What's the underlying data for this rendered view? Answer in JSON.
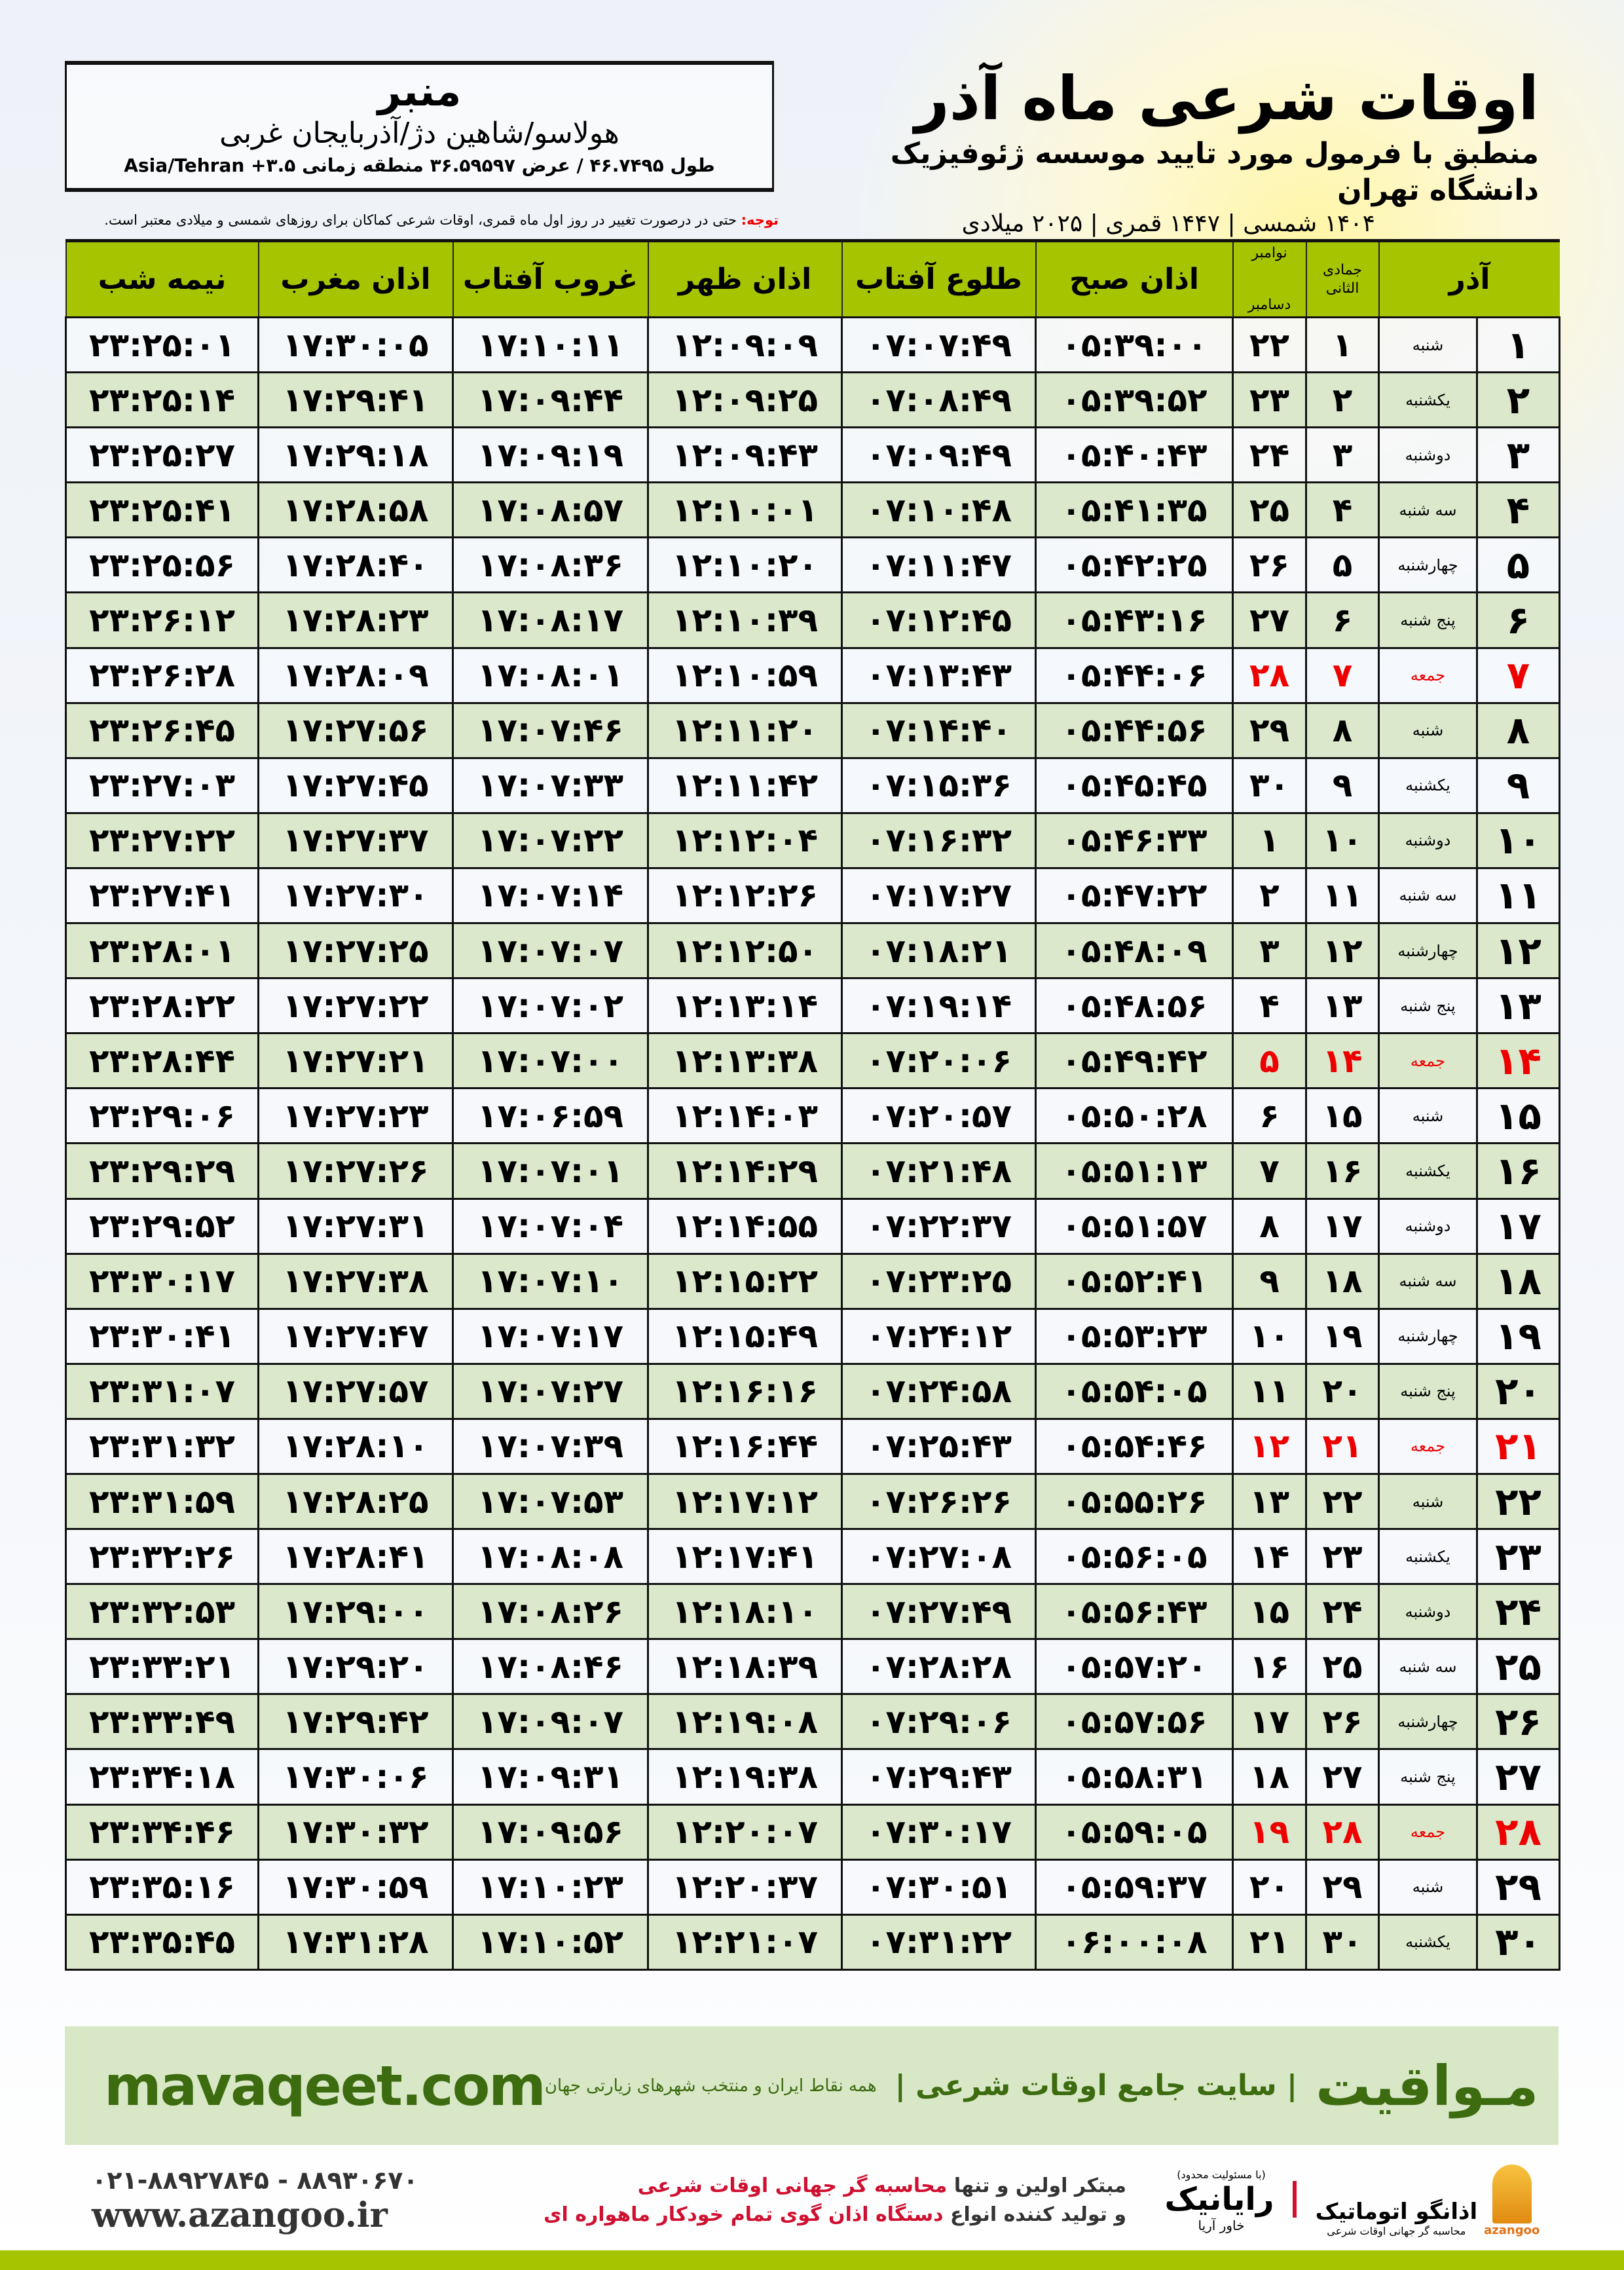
{
  "header": {
    "title": "اوقات شرعی ماه آذر",
    "subtitle": "منطبق با فرمول مورد تایید موسسه ژئوفیزیک دانشگاه تهران",
    "years": "۱۴۰۴ شمسی | ۱۴۴۷ قمری | ۲۰۲۵ میلادی"
  },
  "location": {
    "city": "منبر",
    "region": "هولاسو/شاهین دژ/آذربایجان غربی",
    "coords": "طول ۴۶.۷۴۹۵ / عرض ۳۶.۵۹۵۹۷ منطقه زمانی ۳.۵+ Asia/Tehran"
  },
  "note": {
    "label": "توجه:",
    "text": " حتی در درصورت تغییر در روز اول ماه قمری، اوقات شرعی کماکان برای روزهای شمسی و میلادی معتبر است."
  },
  "columns": {
    "azar": "آذر",
    "hijri": "جمادی الثانی",
    "greg_top": "نوامبر",
    "greg_bottom": "دسامبر",
    "sobh": "اذان صبح",
    "tolu": "طلوع آفتاب",
    "zohr": "اذان ظهر",
    "ghorub": "غروب آفتاب",
    "maghrib": "اذان مغرب",
    "nimeh": "نیمه شب"
  },
  "colors": {
    "header": "#a7c400",
    "even_row": "#dbe8cc",
    "holiday": "#ee0000",
    "brand": "#3c6b10"
  },
  "rows": [
    [
      "۱",
      "شنبه",
      "۱",
      "۲۲",
      "۰۵:۳۹:۰۰",
      "۰۷:۰۷:۴۹",
      "۱۲:۰۹:۰۹",
      "۱۷:۱۰:۱۱",
      "۱۷:۳۰:۰۵",
      "۲۳:۲۵:۰۱",
      false
    ],
    [
      "۲",
      "یکشنبه",
      "۲",
      "۲۳",
      "۰۵:۳۹:۵۲",
      "۰۷:۰۸:۴۹",
      "۱۲:۰۹:۲۵",
      "۱۷:۰۹:۴۴",
      "۱۷:۲۹:۴۱",
      "۲۳:۲۵:۱۴",
      false
    ],
    [
      "۳",
      "دوشنبه",
      "۳",
      "۲۴",
      "۰۵:۴۰:۴۳",
      "۰۷:۰۹:۴۹",
      "۱۲:۰۹:۴۳",
      "۱۷:۰۹:۱۹",
      "۱۷:۲۹:۱۸",
      "۲۳:۲۵:۲۷",
      false
    ],
    [
      "۴",
      "سه شنبه",
      "۴",
      "۲۵",
      "۰۵:۴۱:۳۵",
      "۰۷:۱۰:۴۸",
      "۱۲:۱۰:۰۱",
      "۱۷:۰۸:۵۷",
      "۱۷:۲۸:۵۸",
      "۲۳:۲۵:۴۱",
      false
    ],
    [
      "۵",
      "چهارشنبه",
      "۵",
      "۲۶",
      "۰۵:۴۲:۲۵",
      "۰۷:۱۱:۴۷",
      "۱۲:۱۰:۲۰",
      "۱۷:۰۸:۳۶",
      "۱۷:۲۸:۴۰",
      "۲۳:۲۵:۵۶",
      false
    ],
    [
      "۶",
      "پنج شنبه",
      "۶",
      "۲۷",
      "۰۵:۴۳:۱۶",
      "۰۷:۱۲:۴۵",
      "۱۲:۱۰:۳۹",
      "۱۷:۰۸:۱۷",
      "۱۷:۲۸:۲۳",
      "۲۳:۲۶:۱۲",
      false
    ],
    [
      "۷",
      "جمعه",
      "۷",
      "۲۸",
      "۰۵:۴۴:۰۶",
      "۰۷:۱۳:۴۳",
      "۱۲:۱۰:۵۹",
      "۱۷:۰۸:۰۱",
      "۱۷:۲۸:۰۹",
      "۲۳:۲۶:۲۸",
      true
    ],
    [
      "۸",
      "شنبه",
      "۸",
      "۲۹",
      "۰۵:۴۴:۵۶",
      "۰۷:۱۴:۴۰",
      "۱۲:۱۱:۲۰",
      "۱۷:۰۷:۴۶",
      "۱۷:۲۷:۵۶",
      "۲۳:۲۶:۴۵",
      false
    ],
    [
      "۹",
      "یکشنبه",
      "۹",
      "۳۰",
      "۰۵:۴۵:۴۵",
      "۰۷:۱۵:۳۶",
      "۱۲:۱۱:۴۲",
      "۱۷:۰۷:۳۳",
      "۱۷:۲۷:۴۵",
      "۲۳:۲۷:۰۳",
      false
    ],
    [
      "۱۰",
      "دوشنبه",
      "۱۰",
      "۱",
      "۰۵:۴۶:۳۳",
      "۰۷:۱۶:۳۲",
      "۱۲:۱۲:۰۴",
      "۱۷:۰۷:۲۲",
      "۱۷:۲۷:۳۷",
      "۲۳:۲۷:۲۲",
      false
    ],
    [
      "۱۱",
      "سه شنبه",
      "۱۱",
      "۲",
      "۰۵:۴۷:۲۲",
      "۰۷:۱۷:۲۷",
      "۱۲:۱۲:۲۶",
      "۱۷:۰۷:۱۴",
      "۱۷:۲۷:۳۰",
      "۲۳:۲۷:۴۱",
      false
    ],
    [
      "۱۲",
      "چهارشنبه",
      "۱۲",
      "۳",
      "۰۵:۴۸:۰۹",
      "۰۷:۱۸:۲۱",
      "۱۲:۱۲:۵۰",
      "۱۷:۰۷:۰۷",
      "۱۷:۲۷:۲۵",
      "۲۳:۲۸:۰۱",
      false
    ],
    [
      "۱۳",
      "پنج شنبه",
      "۱۳",
      "۴",
      "۰۵:۴۸:۵۶",
      "۰۷:۱۹:۱۴",
      "۱۲:۱۳:۱۴",
      "۱۷:۰۷:۰۲",
      "۱۷:۲۷:۲۲",
      "۲۳:۲۸:۲۲",
      false
    ],
    [
      "۱۴",
      "جمعه",
      "۱۴",
      "۵",
      "۰۵:۴۹:۴۲",
      "۰۷:۲۰:۰۶",
      "۱۲:۱۳:۳۸",
      "۱۷:۰۷:۰۰",
      "۱۷:۲۷:۲۱",
      "۲۳:۲۸:۴۴",
      true
    ],
    [
      "۱۵",
      "شنبه",
      "۱۵",
      "۶",
      "۰۵:۵۰:۲۸",
      "۰۷:۲۰:۵۷",
      "۱۲:۱۴:۰۳",
      "۱۷:۰۶:۵۹",
      "۱۷:۲۷:۲۳",
      "۲۳:۲۹:۰۶",
      false
    ],
    [
      "۱۶",
      "یکشنبه",
      "۱۶",
      "۷",
      "۰۵:۵۱:۱۳",
      "۰۷:۲۱:۴۸",
      "۱۲:۱۴:۲۹",
      "۱۷:۰۷:۰۱",
      "۱۷:۲۷:۲۶",
      "۲۳:۲۹:۲۹",
      false
    ],
    [
      "۱۷",
      "دوشنبه",
      "۱۷",
      "۸",
      "۰۵:۵۱:۵۷",
      "۰۷:۲۲:۳۷",
      "۱۲:۱۴:۵۵",
      "۱۷:۰۷:۰۴",
      "۱۷:۲۷:۳۱",
      "۲۳:۲۹:۵۲",
      false
    ],
    [
      "۱۸",
      "سه شنبه",
      "۱۸",
      "۹",
      "۰۵:۵۲:۴۱",
      "۰۷:۲۳:۲۵",
      "۱۲:۱۵:۲۲",
      "۱۷:۰۷:۱۰",
      "۱۷:۲۷:۳۸",
      "۲۳:۳۰:۱۷",
      false
    ],
    [
      "۱۹",
      "چهارشنبه",
      "۱۹",
      "۱۰",
      "۰۵:۵۳:۲۳",
      "۰۷:۲۴:۱۲",
      "۱۲:۱۵:۴۹",
      "۱۷:۰۷:۱۷",
      "۱۷:۲۷:۴۷",
      "۲۳:۳۰:۴۱",
      false
    ],
    [
      "۲۰",
      "پنج شنبه",
      "۲۰",
      "۱۱",
      "۰۵:۵۴:۰۵",
      "۰۷:۲۴:۵۸",
      "۱۲:۱۶:۱۶",
      "۱۷:۰۷:۲۷",
      "۱۷:۲۷:۵۷",
      "۲۳:۳۱:۰۷",
      false
    ],
    [
      "۲۱",
      "جمعه",
      "۲۱",
      "۱۲",
      "۰۵:۵۴:۴۶",
      "۰۷:۲۵:۴۳",
      "۱۲:۱۶:۴۴",
      "۱۷:۰۷:۳۹",
      "۱۷:۲۸:۱۰",
      "۲۳:۳۱:۳۲",
      true
    ],
    [
      "۲۲",
      "شنبه",
      "۲۲",
      "۱۳",
      "۰۵:۵۵:۲۶",
      "۰۷:۲۶:۲۶",
      "۱۲:۱۷:۱۲",
      "۱۷:۰۷:۵۳",
      "۱۷:۲۸:۲۵",
      "۲۳:۳۱:۵۹",
      false
    ],
    [
      "۲۳",
      "یکشنبه",
      "۲۳",
      "۱۴",
      "۰۵:۵۶:۰۵",
      "۰۷:۲۷:۰۸",
      "۱۲:۱۷:۴۱",
      "۱۷:۰۸:۰۸",
      "۱۷:۲۸:۴۱",
      "۲۳:۳۲:۲۶",
      false
    ],
    [
      "۲۴",
      "دوشنبه",
      "۲۴",
      "۱۵",
      "۰۵:۵۶:۴۳",
      "۰۷:۲۷:۴۹",
      "۱۲:۱۸:۱۰",
      "۱۷:۰۸:۲۶",
      "۱۷:۲۹:۰۰",
      "۲۳:۳۲:۵۳",
      false
    ],
    [
      "۲۵",
      "سه شنبه",
      "۲۵",
      "۱۶",
      "۰۵:۵۷:۲۰",
      "۰۷:۲۸:۲۸",
      "۱۲:۱۸:۳۹",
      "۱۷:۰۸:۴۶",
      "۱۷:۲۹:۲۰",
      "۲۳:۳۳:۲۱",
      false
    ],
    [
      "۲۶",
      "چهارشنبه",
      "۲۶",
      "۱۷",
      "۰۵:۵۷:۵۶",
      "۰۷:۲۹:۰۶",
      "۱۲:۱۹:۰۸",
      "۱۷:۰۹:۰۷",
      "۱۷:۲۹:۴۲",
      "۲۳:۳۳:۴۹",
      false
    ],
    [
      "۲۷",
      "پنج شنبه",
      "۲۷",
      "۱۸",
      "۰۵:۵۸:۳۱",
      "۰۷:۲۹:۴۳",
      "۱۲:۱۹:۳۸",
      "۱۷:۰۹:۳۱",
      "۱۷:۳۰:۰۶",
      "۲۳:۳۴:۱۸",
      false
    ],
    [
      "۲۸",
      "جمعه",
      "۲۸",
      "۱۹",
      "۰۵:۵۹:۰۵",
      "۰۷:۳۰:۱۷",
      "۱۲:۲۰:۰۷",
      "۱۷:۰۹:۵۶",
      "۱۷:۳۰:۳۲",
      "۲۳:۳۴:۴۶",
      true
    ],
    [
      "۲۹",
      "شنبه",
      "۲۹",
      "۲۰",
      "۰۵:۵۹:۳۷",
      "۰۷:۳۰:۵۱",
      "۱۲:۲۰:۳۷",
      "۱۷:۱۰:۲۳",
      "۱۷:۳۰:۵۹",
      "۲۳:۳۵:۱۶",
      false
    ],
    [
      "۳۰",
      "یکشنبه",
      "۳۰",
      "۲۱",
      "۰۶:۰۰:۰۸",
      "۰۷:۳۱:۲۲",
      "۱۲:۲۱:۰۷",
      "۱۷:۱۰:۵۲",
      "۱۷:۳۱:۲۸",
      "۲۳:۳۵:۴۵",
      false
    ]
  ],
  "footer": {
    "site": "mavaqeet.com",
    "brand": "مـواقیت",
    "tagline": "| سایت جامع اوقات شرعی |",
    "tagline2": "همه نقاط ایران و منتخب شهرهای زیارتی جهان",
    "phone": "۰۲۱-۸۸۹۲۷۸۴۵ - ۸۸۹۳۰۶۷۰",
    "web": "www.azangoo.ir",
    "promo1a": "مبتکر اولین و تنها ",
    "promo1b": "محاسبه گر جهانی اوقات شرعی",
    "promo2a": "و تولید کننده انواع ",
    "promo2b": "دستگاه اذان گوی تمام خودکار ماهواره ای",
    "rayanik": "رایانیک",
    "rayanik_sub": "خاور آریا",
    "rayanik_note": "(با مسئولیت محدود)",
    "azangoo_fa": "اذانگو اتوماتیک",
    "azangoo_en": "azangoo",
    "azangoo_sub": "محاسبه گر جهانی اوقات شرعی"
  }
}
